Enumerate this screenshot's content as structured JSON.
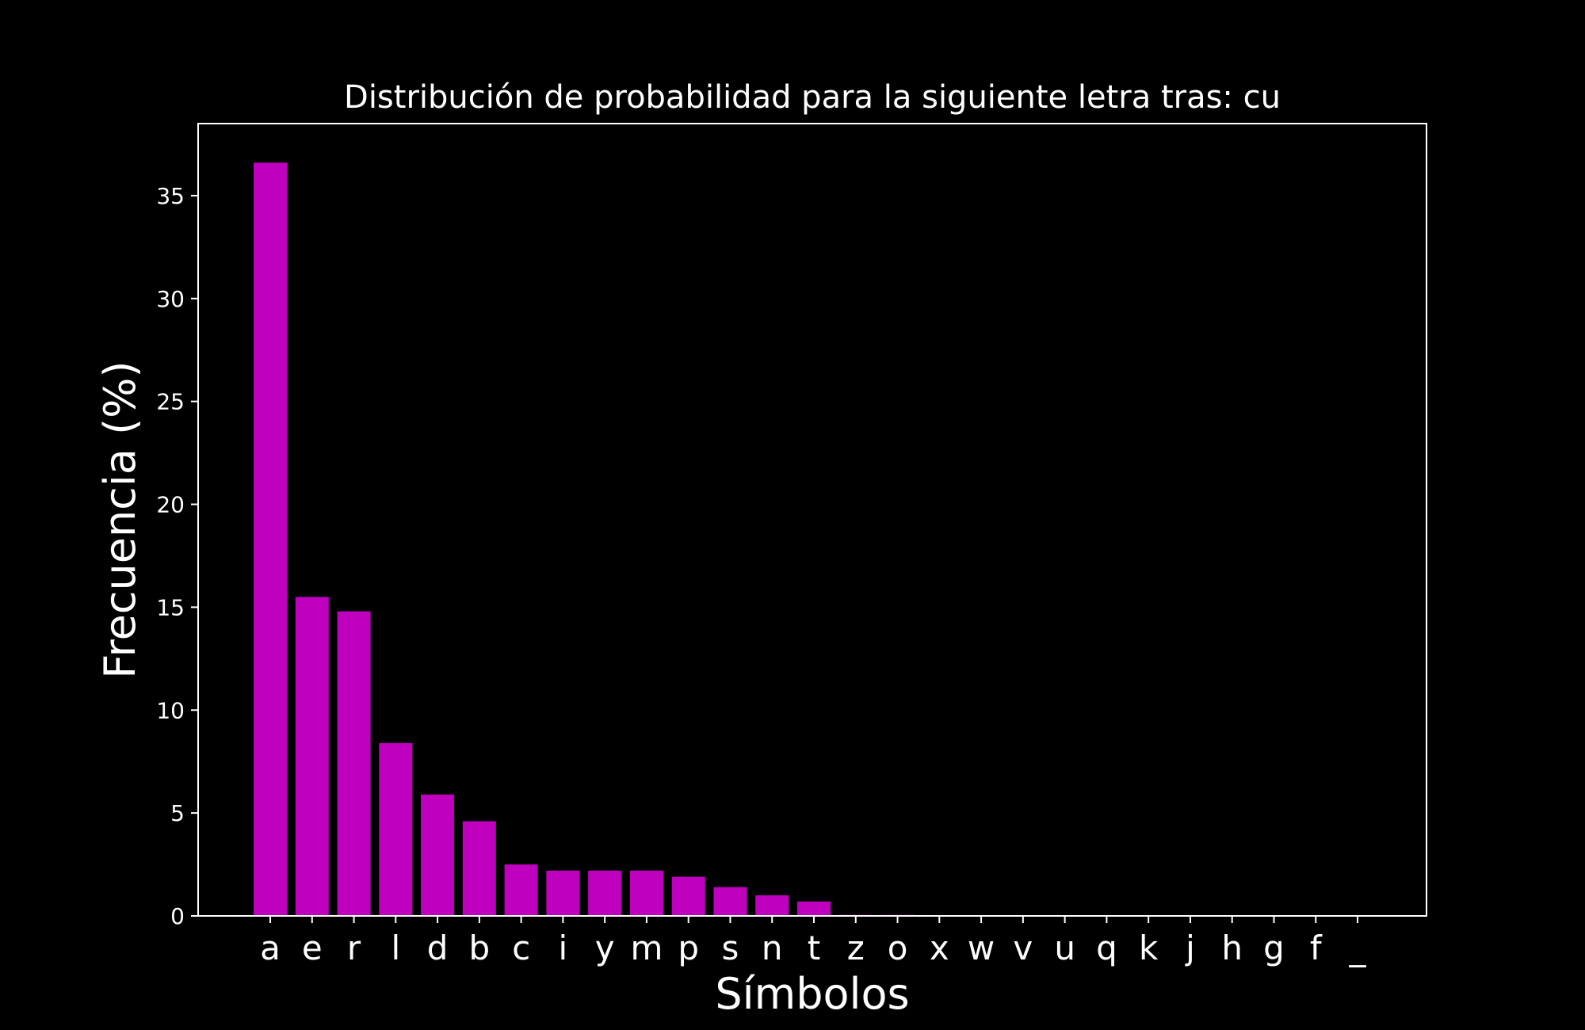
{
  "chart_data": {
    "type": "bar",
    "title": "Distribución de probabilidad para la siguiente letra tras: cu",
    "xlabel": "Símbolos",
    "ylabel": "Frecuencia (%)",
    "categories": [
      "a",
      "e",
      "r",
      "l",
      "d",
      "b",
      "c",
      "i",
      "y",
      "m",
      "p",
      "s",
      "n",
      "t",
      "z",
      "o",
      "x",
      "w",
      "v",
      "u",
      "q",
      "k",
      "j",
      "h",
      "g",
      "f",
      "_"
    ],
    "values": [
      36.6,
      15.5,
      14.8,
      8.4,
      5.9,
      4.6,
      2.5,
      2.2,
      2.2,
      2.2,
      1.9,
      1.4,
      1.0,
      0.7,
      0.05,
      0.05,
      0,
      0,
      0,
      0,
      0,
      0,
      0,
      0,
      0,
      0,
      0
    ],
    "ylim": [
      0,
      38.5
    ],
    "yticks": [
      0,
      5,
      10,
      15,
      20,
      25,
      30,
      35
    ],
    "bar_color": "#bf00bf",
    "background_color": "#000000",
    "grid": false
  }
}
